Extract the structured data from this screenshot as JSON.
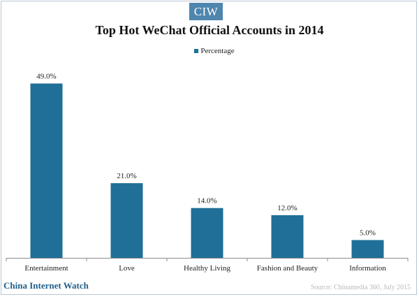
{
  "header": {
    "logo_text": "CIW"
  },
  "chart_data": {
    "type": "bar",
    "title": "Top Hot WeChat Official Accounts in 2014",
    "categories": [
      "Entertainment",
      "Love",
      "Healthy Living",
      "Fashion and Beauty",
      "Information"
    ],
    "series": [
      {
        "name": "Percentage",
        "values": [
          49.0,
          21.0,
          14.0,
          12.0,
          5.0
        ]
      }
    ],
    "data_labels": [
      "49.0%",
      "21.0%",
      "14.0%",
      "12.0%",
      "5.0%"
    ],
    "ylim": [
      0,
      55
    ],
    "grid": false,
    "legend_position": "top-center",
    "bar_color": "#1f6f98"
  },
  "footer": {
    "brand": "China Internet Watch",
    "source": "Source: Chinamedia 360, July 2015"
  },
  "colors": {
    "accent": "#1f6f98",
    "logo_bg": "#4f86ad",
    "brand_text": "#1e5f8a",
    "source_text": "#b9b9b9"
  }
}
